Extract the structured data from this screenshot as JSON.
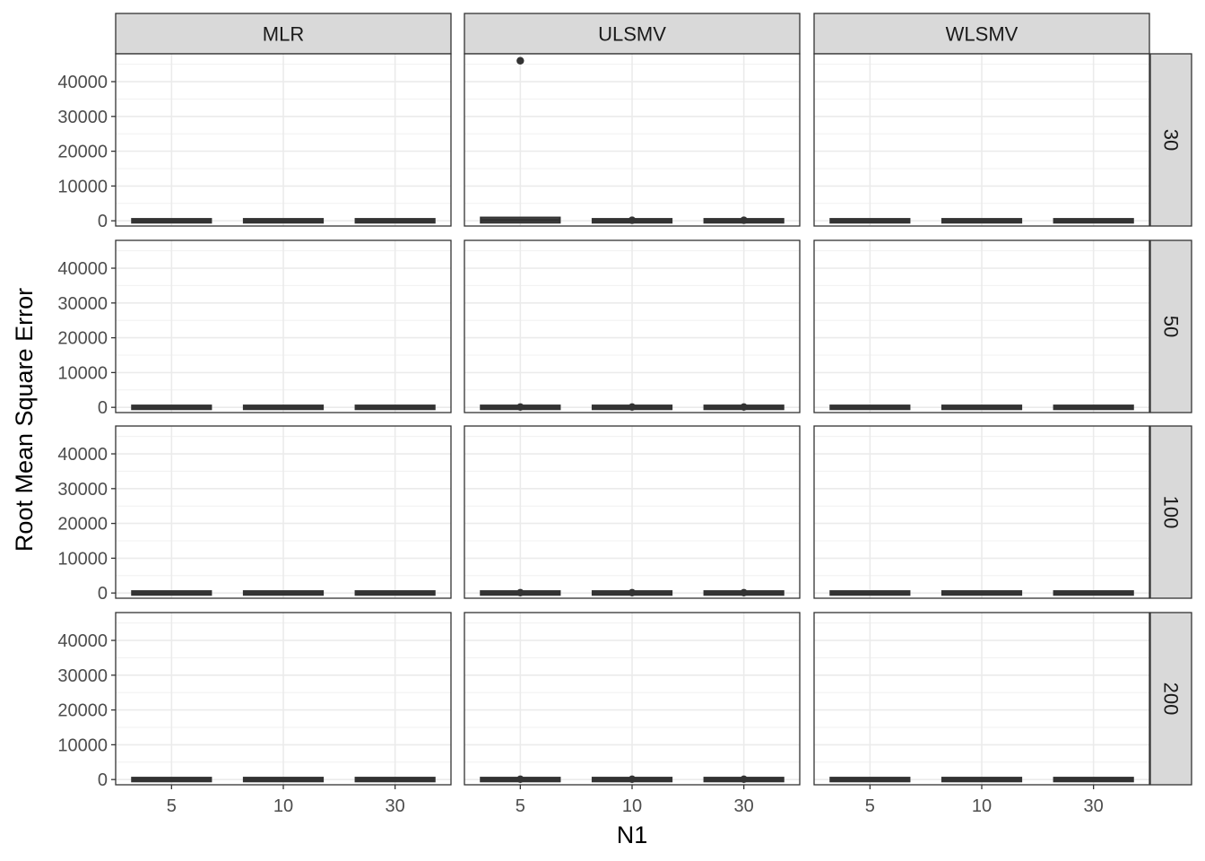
{
  "chart_data": {
    "type": "boxplot",
    "xlabel": "N1",
    "ylabel": "Root Mean Square Error",
    "x_categories": [
      "5",
      "10",
      "30"
    ],
    "y_ticks": [
      0,
      10000,
      20000,
      30000,
      40000
    ],
    "y_tick_labels": [
      "0",
      "10000",
      "20000",
      "30000",
      "40000"
    ],
    "ylim": [
      -1500,
      48000
    ],
    "grid": true,
    "facet_columns": [
      "MLR",
      "ULSMV",
      "WLSMV"
    ],
    "facet_rows": [
      "30",
      "50",
      "100",
      "200"
    ],
    "box_color": "#333333",
    "strip_fill": "#d9d9d9",
    "panels": [
      {
        "row": "30",
        "col": "MLR",
        "boxes": [
          {
            "x": "5",
            "q1": 0,
            "median": 0,
            "q3": 0,
            "outliers": []
          },
          {
            "x": "10",
            "q1": 0,
            "median": 0,
            "q3": 0,
            "outliers": []
          },
          {
            "x": "30",
            "q1": 0,
            "median": 0,
            "q3": 0,
            "outliers": []
          }
        ]
      },
      {
        "row": "30",
        "col": "ULSMV",
        "boxes": [
          {
            "x": "5",
            "q1": 0,
            "median": 200,
            "q3": 400,
            "outliers": [
              46000
            ]
          },
          {
            "x": "10",
            "q1": 0,
            "median": 0,
            "q3": 0,
            "outliers": [
              150
            ]
          },
          {
            "x": "30",
            "q1": 0,
            "median": 0,
            "q3": 0,
            "outliers": [
              150
            ]
          }
        ]
      },
      {
        "row": "30",
        "col": "WLSMV",
        "boxes": [
          {
            "x": "5",
            "q1": 0,
            "median": 0,
            "q3": 0,
            "outliers": []
          },
          {
            "x": "10",
            "q1": 0,
            "median": 0,
            "q3": 0,
            "outliers": []
          },
          {
            "x": "30",
            "q1": 0,
            "median": 0,
            "q3": 0,
            "outliers": []
          }
        ]
      },
      {
        "row": "50",
        "col": "MLR",
        "boxes": [
          {
            "x": "5",
            "q1": 0,
            "median": 0,
            "q3": 0,
            "outliers": []
          },
          {
            "x": "10",
            "q1": 0,
            "median": 0,
            "q3": 0,
            "outliers": []
          },
          {
            "x": "30",
            "q1": 0,
            "median": 0,
            "q3": 0,
            "outliers": []
          }
        ]
      },
      {
        "row": "50",
        "col": "ULSMV",
        "boxes": [
          {
            "x": "5",
            "q1": 0,
            "median": 0,
            "q3": 0,
            "outliers": [
              100
            ]
          },
          {
            "x": "10",
            "q1": 0,
            "median": 0,
            "q3": 0,
            "outliers": [
              100
            ]
          },
          {
            "x": "30",
            "q1": 0,
            "median": 0,
            "q3": 0,
            "outliers": [
              100
            ]
          }
        ]
      },
      {
        "row": "50",
        "col": "WLSMV",
        "boxes": [
          {
            "x": "5",
            "q1": 0,
            "median": 0,
            "q3": 0,
            "outliers": []
          },
          {
            "x": "10",
            "q1": 0,
            "median": 0,
            "q3": 0,
            "outliers": []
          },
          {
            "x": "30",
            "q1": 0,
            "median": 0,
            "q3": 0,
            "outliers": []
          }
        ]
      },
      {
        "row": "100",
        "col": "MLR",
        "boxes": [
          {
            "x": "5",
            "q1": 0,
            "median": 0,
            "q3": 0,
            "outliers": []
          },
          {
            "x": "10",
            "q1": 0,
            "median": 0,
            "q3": 0,
            "outliers": []
          },
          {
            "x": "30",
            "q1": 0,
            "median": 0,
            "q3": 0,
            "outliers": []
          }
        ]
      },
      {
        "row": "100",
        "col": "ULSMV",
        "boxes": [
          {
            "x": "5",
            "q1": 0,
            "median": 0,
            "q3": 0,
            "outliers": [
              100
            ]
          },
          {
            "x": "10",
            "q1": 0,
            "median": 0,
            "q3": 0,
            "outliers": [
              100
            ]
          },
          {
            "x": "30",
            "q1": 0,
            "median": 0,
            "q3": 0,
            "outliers": [
              100
            ]
          }
        ]
      },
      {
        "row": "100",
        "col": "WLSMV",
        "boxes": [
          {
            "x": "5",
            "q1": 0,
            "median": 0,
            "q3": 0,
            "outliers": []
          },
          {
            "x": "10",
            "q1": 0,
            "median": 0,
            "q3": 0,
            "outliers": []
          },
          {
            "x": "30",
            "q1": 0,
            "median": 0,
            "q3": 0,
            "outliers": []
          }
        ]
      },
      {
        "row": "200",
        "col": "MLR",
        "boxes": [
          {
            "x": "5",
            "q1": 0,
            "median": 0,
            "q3": 0,
            "outliers": []
          },
          {
            "x": "10",
            "q1": 0,
            "median": 0,
            "q3": 0,
            "outliers": []
          },
          {
            "x": "30",
            "q1": 0,
            "median": 0,
            "q3": 0,
            "outliers": []
          }
        ]
      },
      {
        "row": "200",
        "col": "ULSMV",
        "boxes": [
          {
            "x": "5",
            "q1": 0,
            "median": 0,
            "q3": 0,
            "outliers": [
              100
            ]
          },
          {
            "x": "10",
            "q1": 0,
            "median": 0,
            "q3": 0,
            "outliers": [
              100
            ]
          },
          {
            "x": "30",
            "q1": 0,
            "median": 0,
            "q3": 0,
            "outliers": [
              100
            ]
          }
        ]
      },
      {
        "row": "200",
        "col": "WLSMV",
        "boxes": [
          {
            "x": "5",
            "q1": 0,
            "median": 0,
            "q3": 0,
            "outliers": []
          },
          {
            "x": "10",
            "q1": 0,
            "median": 0,
            "q3": 0,
            "outliers": []
          },
          {
            "x": "30",
            "q1": 0,
            "median": 0,
            "q3": 0,
            "outliers": []
          }
        ]
      }
    ]
  }
}
